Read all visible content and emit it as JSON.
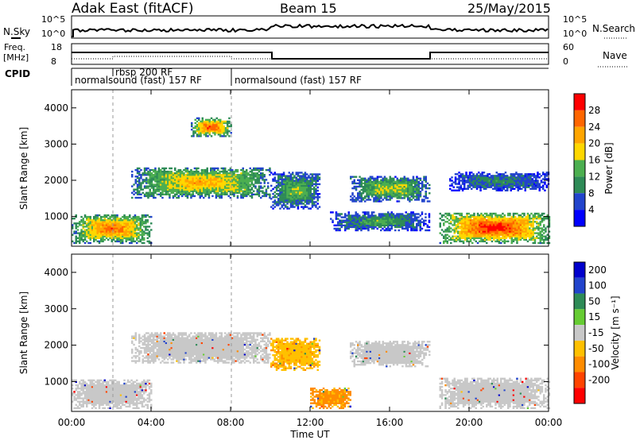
{
  "header": {
    "station": "Adak East (fitACF)",
    "beam": "Beam 15",
    "date": "25/May/2015"
  },
  "summary_panels": {
    "nsky_label": "N.Sky",
    "nsearch_label": "N.Search",
    "noise_ticks": [
      "10^5",
      "10^0"
    ],
    "freq_label": "Freq.",
    "freq_unit": "[MHz]",
    "freq_ticks": [
      "18",
      "8"
    ],
    "nave_label": "Nave",
    "nave_ticks": [
      "60",
      "0"
    ],
    "cpid_label": "CPID",
    "cpid_segments": [
      "normalsound (fast) 157 RF",
      "rbsp 200 RF",
      "normalsound (fast) 157 RF"
    ]
  },
  "axes": {
    "ylabel": "Slant Range [km]",
    "xlabel": "Time UT",
    "yticks": [
      "1000",
      "2000",
      "3000",
      "4000"
    ],
    "xticks": [
      "00:00",
      "04:00",
      "08:00",
      "12:00",
      "16:00",
      "20:00",
      "00:00"
    ]
  },
  "colors": {
    "power_scale": [
      "#0000ff",
      "#2244cc",
      "#2e8b57",
      "#4caf50",
      "#ffd700",
      "#ffa500",
      "#ff6600",
      "#ff0000"
    ],
    "velocity_scale": [
      "#ff0000",
      "#ff4400",
      "#ff8c00",
      "#ffc000",
      "#c8c8c8",
      "#66cc33",
      "#2e8b57",
      "#2244cc",
      "#0000cc"
    ]
  },
  "chart_data": [
    {
      "type": "heatmap",
      "title": "",
      "xlabel": "",
      "ylabel": "Slant Range [km]",
      "xlim": [
        0,
        24
      ],
      "ylim": [
        180,
        4500
      ],
      "colorbar": {
        "label": "Power [dB]",
        "ticks": [
          "28",
          "24",
          "20",
          "16",
          "12",
          "8",
          "4"
        ]
      },
      "regions": [
        {
          "t0": 0.0,
          "t1": 4.0,
          "r0": 250,
          "r1": 1050,
          "level": 24
        },
        {
          "t0": 3.0,
          "t1": 10.0,
          "r0": 1500,
          "r1": 2350,
          "level": 20
        },
        {
          "t0": 6.0,
          "t1": 8.0,
          "r0": 3200,
          "r1": 3700,
          "level": 26
        },
        {
          "t0": 10.0,
          "t1": 12.5,
          "r0": 1200,
          "r1": 2200,
          "level": 14
        },
        {
          "t0": 13.0,
          "t1": 18.0,
          "r0": 600,
          "r1": 1100,
          "level": 12
        },
        {
          "t0": 14.0,
          "t1": 18.0,
          "r0": 1400,
          "r1": 2100,
          "level": 16
        },
        {
          "t0": 18.5,
          "t1": 24.0,
          "r0": 250,
          "r1": 1100,
          "level": 28
        },
        {
          "t0": 19.0,
          "t1": 24.0,
          "r0": 1700,
          "r1": 2200,
          "level": 10
        }
      ]
    },
    {
      "type": "heatmap",
      "title": "",
      "xlabel": "Time UT",
      "ylabel": "Slant Range [km]",
      "xlim": [
        0,
        24
      ],
      "ylim": [
        180,
        4500
      ],
      "colorbar": {
        "label": "Velocity [m s⁻¹]",
        "ticks": [
          "200",
          "100",
          "50",
          "15",
          "-15",
          "-50",
          "-100",
          "-200"
        ]
      },
      "regions": [
        {
          "t0": 0.0,
          "t1": 4.0,
          "r0": 250,
          "r1": 1050,
          "level": 0
        },
        {
          "t0": 3.0,
          "t1": 10.0,
          "r0": 1500,
          "r1": 2350,
          "level": 0
        },
        {
          "t0": 10.0,
          "t1": 12.5,
          "r0": 1300,
          "r1": 2200,
          "level": -40
        },
        {
          "t0": 12.0,
          "t1": 14.0,
          "r0": 250,
          "r1": 800,
          "level": -60
        },
        {
          "t0": 14.0,
          "t1": 18.0,
          "r0": 1400,
          "r1": 2100,
          "level": 0
        },
        {
          "t0": 18.5,
          "t1": 24.0,
          "r0": 250,
          "r1": 1100,
          "level": 0
        }
      ]
    }
  ]
}
